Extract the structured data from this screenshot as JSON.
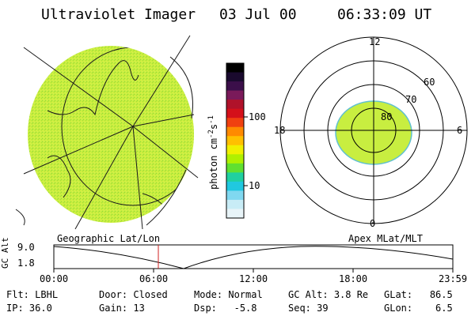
{
  "header": {
    "title": "Ultraviolet Imager",
    "date": "03 Jul 00",
    "time": "06:33:09 UT"
  },
  "colorbar": {
    "unit_label": "photon cm",
    "unit_exp1": "-2",
    "unit_mid": "s",
    "unit_exp2": "-1",
    "ticks": [
      "100",
      "10"
    ],
    "colors": [
      "#000000",
      "#1a0a2e",
      "#3b0f4a",
      "#7a1a5a",
      "#b0122a",
      "#d4101a",
      "#f04010",
      "#ff8a00",
      "#ffc000",
      "#f0f000",
      "#b0f000",
      "#60e030",
      "#20d0a0",
      "#20c8e0",
      "#80d8f0",
      "#c8ecf6",
      "#e8f4f8"
    ]
  },
  "geo_panel": {
    "label": "Geographic Lat/Lon",
    "fill_color": "#c8f040"
  },
  "polar_panel": {
    "label": "Apex MLat/MLT",
    "mlt_labels": [
      "12",
      "18",
      "6",
      "0"
    ],
    "lat_labels": [
      "60",
      "70",
      "80"
    ],
    "oval_color": "#c8f040"
  },
  "altitude_plot": {
    "ylabel": "GC Alt",
    "ymax": "9.0",
    "ymin": "1.8",
    "x_ticks": [
      "00:00",
      "06:00",
      "12:00",
      "18:00",
      "23:59"
    ],
    "marker_time_hours": 6.55,
    "marker_color": "#d02020"
  },
  "info": {
    "filter_label": "Flt:",
    "filter": "LBHL",
    "ip_label": "IP:",
    "ip": "36.0",
    "door_label": "Door:",
    "door": "Closed",
    "gain_label": "Gain:",
    "gain": "13",
    "mode_label": "Mode:",
    "mode": "Normal",
    "dsp_label": "Dsp:",
    "dsp": "-5.8",
    "gcalt_label": "GC Alt:",
    "gcalt": "3.8 Re",
    "seq_label": "Seq:",
    "seq": "39",
    "glat_label": "GLat:",
    "glat": "86.5",
    "glon_label": "GLon:",
    "glon": "6.5"
  }
}
